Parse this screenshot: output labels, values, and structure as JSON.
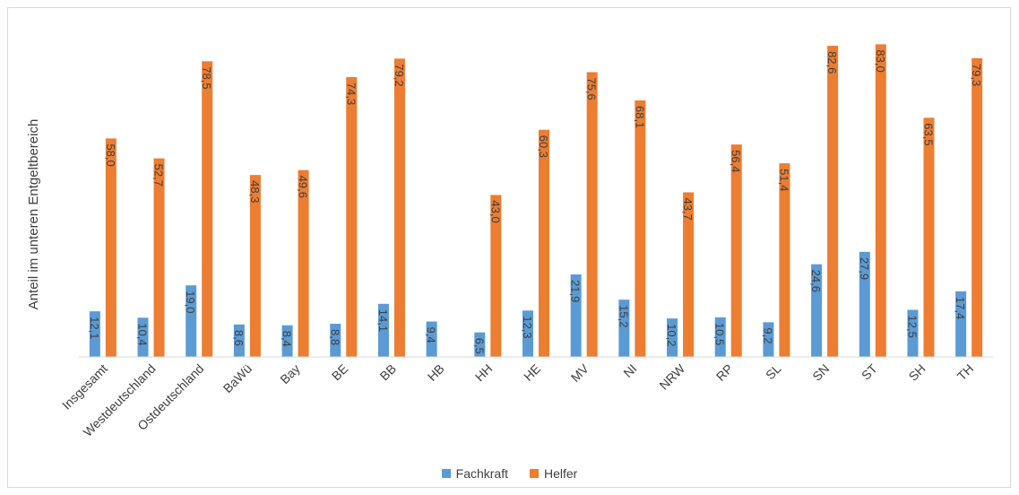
{
  "chart_data": {
    "type": "bar",
    "title": "",
    "xlabel": "",
    "ylabel": "Anteil im unteren Entgeltbereich",
    "ylim": [
      0,
      90
    ],
    "grid": false,
    "legend_position": "bottom",
    "categories": [
      "Insgesamt",
      "Westdeutschland",
      "Ostdeutschland",
      "BaWü",
      "Bay",
      "BE",
      "BB",
      "HB",
      "HH",
      "HE",
      "MV",
      "NI",
      "NRW",
      "RP",
      "SL",
      "SN",
      "ST",
      "SH",
      "TH"
    ],
    "series": [
      {
        "name": "Fachkraft",
        "color": "#5b9bd5",
        "values": [
          12.1,
          10.4,
          19.0,
          8.6,
          8.4,
          8.8,
          14.1,
          9.4,
          6.5,
          12.3,
          21.9,
          15.2,
          10.2,
          10.5,
          9.2,
          24.6,
          27.9,
          12.5,
          17.4
        ],
        "labels": [
          "12,1",
          "10,4",
          "19,0",
          "8,6",
          "8,4",
          "8,8",
          "14,1",
          "9,4",
          "6,5",
          "12,3",
          "21,9",
          "15,2",
          "10,2",
          "10,5",
          "9,2",
          "24,6",
          "27,9",
          "12,5",
          "17,4"
        ]
      },
      {
        "name": "Helfer",
        "color": "#ed7d31",
        "values": [
          58.0,
          52.7,
          78.5,
          48.3,
          49.6,
          74.3,
          79.2,
          null,
          43.0,
          60.3,
          75.6,
          68.1,
          43.7,
          56.4,
          51.4,
          82.6,
          83.0,
          63.5,
          79.3
        ],
        "labels": [
          "58,0",
          "52,7",
          "78,5",
          "48,3",
          "49,6",
          "74,3",
          "79,2",
          "",
          "43,0",
          "60,3",
          "75,6",
          "68,1",
          "43,7",
          "56,4",
          "51,4",
          "82,6",
          "83,0",
          "63,5",
          "79,3"
        ]
      }
    ]
  }
}
